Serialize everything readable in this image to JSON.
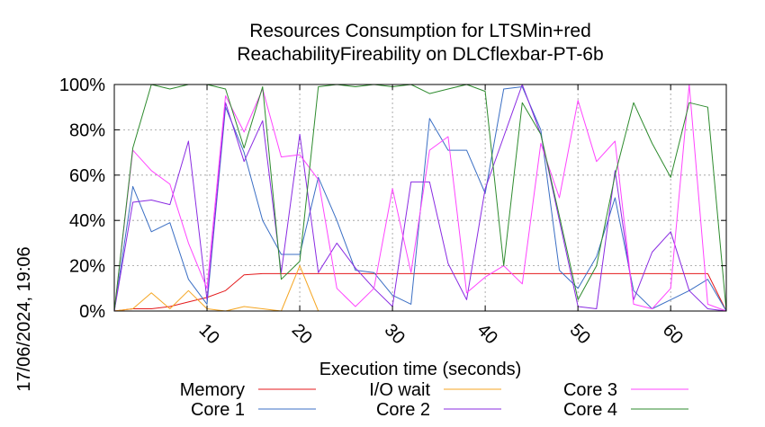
{
  "chart_data": {
    "type": "line",
    "title_lines": [
      "Resources Consumption for LTSMin+red",
      "ReachabilityFireability on DLCflexbar-PT-6b"
    ],
    "xlabel": "Execution time (seconds)",
    "ylabel": "",
    "timestamp": "17/06/2024, 19:06",
    "xlim": [
      0,
      66
    ],
    "ylim": [
      0,
      100
    ],
    "x_ticks": [
      10,
      20,
      30,
      40,
      50,
      60
    ],
    "x_tick_labels": [
      "10",
      "20",
      "30",
      "40",
      "50",
      "60"
    ],
    "y_ticks": [
      0,
      20,
      40,
      60,
      80,
      100
    ],
    "y_tick_labels": [
      "0%",
      "20%",
      "40%",
      "60%",
      "80%",
      "100%"
    ],
    "grid": true,
    "legend_position": "bottom",
    "series": [
      {
        "name": "Memory",
        "color": "#e41a1c",
        "x": [
          0,
          2,
          4,
          6,
          8,
          10,
          12,
          14,
          16,
          18,
          20,
          22,
          24,
          26,
          28,
          30,
          32,
          34,
          36,
          38,
          40,
          42,
          44,
          46,
          48,
          50,
          52,
          54,
          56,
          58,
          60,
          62,
          64,
          66
        ],
        "y": [
          0,
          1,
          1,
          2,
          4,
          6,
          9,
          16,
          16.5,
          16.5,
          16.5,
          16.5,
          16.5,
          16.5,
          16.5,
          16.5,
          16.5,
          16.5,
          16.5,
          16.5,
          16.5,
          16.5,
          16.5,
          16.5,
          16.5,
          16.5,
          16.5,
          16.5,
          16.5,
          16.5,
          16.5,
          16.5,
          16.5,
          0
        ]
      },
      {
        "name": "Core 1",
        "color": "#3b6fc4",
        "x": [
          0,
          2,
          4,
          6,
          8,
          10,
          12,
          14,
          16,
          18,
          20,
          22,
          24,
          26,
          28,
          30,
          32,
          34,
          36,
          38,
          40,
          42,
          44,
          46,
          48,
          50,
          52,
          54,
          56,
          58,
          60,
          62,
          64,
          66
        ],
        "y": [
          0,
          55,
          35,
          39,
          14,
          3,
          90,
          70,
          40,
          25,
          25,
          59,
          40,
          18,
          17,
          7,
          3,
          85,
          71,
          71,
          52,
          98,
          99,
          80,
          18,
          10,
          24,
          50,
          9,
          1,
          5,
          9,
          14,
          0
        ]
      },
      {
        "name": "I/O wait",
        "color": "#f5a623",
        "x": [
          0,
          2,
          4,
          6,
          8,
          10,
          12,
          14,
          16,
          18,
          20,
          22,
          24,
          26,
          28,
          30,
          32,
          34,
          36,
          38,
          40,
          42,
          44,
          46,
          48,
          50,
          52,
          54,
          56,
          58,
          60,
          62,
          64,
          66
        ],
        "y": [
          0,
          1,
          8,
          1,
          9,
          1,
          0,
          2,
          1,
          0,
          20,
          0,
          0,
          0,
          0,
          0,
          0,
          0,
          0,
          0,
          0,
          0,
          0,
          0,
          0,
          0,
          0,
          0,
          0,
          0,
          0,
          0,
          0,
          0
        ]
      },
      {
        "name": "Core 2",
        "color": "#8a2be2",
        "x": [
          0,
          2,
          4,
          6,
          8,
          10,
          12,
          14,
          16,
          18,
          20,
          22,
          24,
          26,
          28,
          30,
          32,
          34,
          36,
          38,
          40,
          42,
          44,
          46,
          48,
          50,
          52,
          54,
          56,
          58,
          60,
          62,
          64,
          66
        ],
        "y": [
          0,
          48,
          49,
          47,
          75,
          5,
          92,
          66,
          84,
          17,
          78,
          17,
          30,
          19,
          10,
          2,
          57,
          57,
          21,
          5,
          54,
          77,
          100,
          78,
          40,
          2,
          1,
          62,
          5,
          26,
          35,
          9,
          1,
          0
        ]
      },
      {
        "name": "Core 3",
        "color": "#ff44ff",
        "x": [
          0,
          2,
          4,
          6,
          8,
          10,
          12,
          14,
          16,
          18,
          20,
          22,
          24,
          26,
          28,
          30,
          32,
          34,
          36,
          38,
          40,
          42,
          44,
          46,
          48,
          50,
          52,
          54,
          56,
          58,
          60,
          62,
          64,
          66
        ],
        "y": [
          0,
          71,
          62,
          56,
          30,
          10,
          95,
          79,
          98,
          68,
          69,
          58,
          10,
          2,
          10,
          54,
          17,
          71,
          77,
          8,
          15,
          20,
          12,
          74,
          50,
          93,
          66,
          75,
          3,
          1,
          10,
          100,
          3,
          0
        ]
      },
      {
        "name": "Core 4",
        "color": "#2e8b2e",
        "x": [
          0,
          2,
          4,
          6,
          8,
          10,
          12,
          14,
          16,
          18,
          20,
          22,
          24,
          26,
          28,
          30,
          32,
          34,
          36,
          38,
          40,
          42,
          44,
          46,
          48,
          50,
          52,
          54,
          56,
          58,
          60,
          62,
          64,
          66
        ],
        "y": [
          0,
          72,
          100,
          98,
          100,
          100,
          98,
          72,
          99,
          14,
          22,
          99,
          100,
          99,
          100,
          99,
          100,
          96,
          98,
          100,
          97,
          20,
          92,
          78,
          42,
          5,
          20,
          60,
          92,
          74,
          59,
          92,
          90,
          0
        ]
      }
    ]
  }
}
